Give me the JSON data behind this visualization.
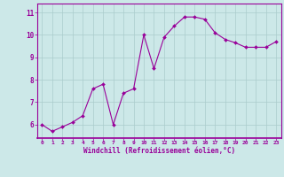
{
  "x": [
    0,
    1,
    2,
    3,
    4,
    5,
    6,
    7,
    8,
    9,
    10,
    11,
    12,
    13,
    14,
    15,
    16,
    17,
    18,
    19,
    20,
    21,
    22,
    23
  ],
  "y": [
    6.0,
    5.7,
    5.9,
    6.1,
    6.4,
    7.6,
    7.8,
    6.0,
    7.4,
    7.6,
    10.0,
    8.5,
    9.9,
    10.4,
    10.8,
    10.8,
    10.7,
    10.1,
    9.8,
    9.65,
    9.45,
    9.45,
    9.45,
    9.7
  ],
  "line_color": "#990099",
  "marker_color": "#990099",
  "bg_color": "#cce8e8",
  "grid_color": "#aacccc",
  "xlabel": "Windchill (Refroidissement éolien,°C)",
  "xlabel_color": "#990099",
  "tick_color": "#990099",
  "yticks": [
    6,
    7,
    8,
    9,
    10,
    11
  ],
  "ylim": [
    5.4,
    11.4
  ],
  "xlim": [
    -0.5,
    23.5
  ],
  "figsize": [
    3.2,
    2.0
  ],
  "dpi": 100
}
